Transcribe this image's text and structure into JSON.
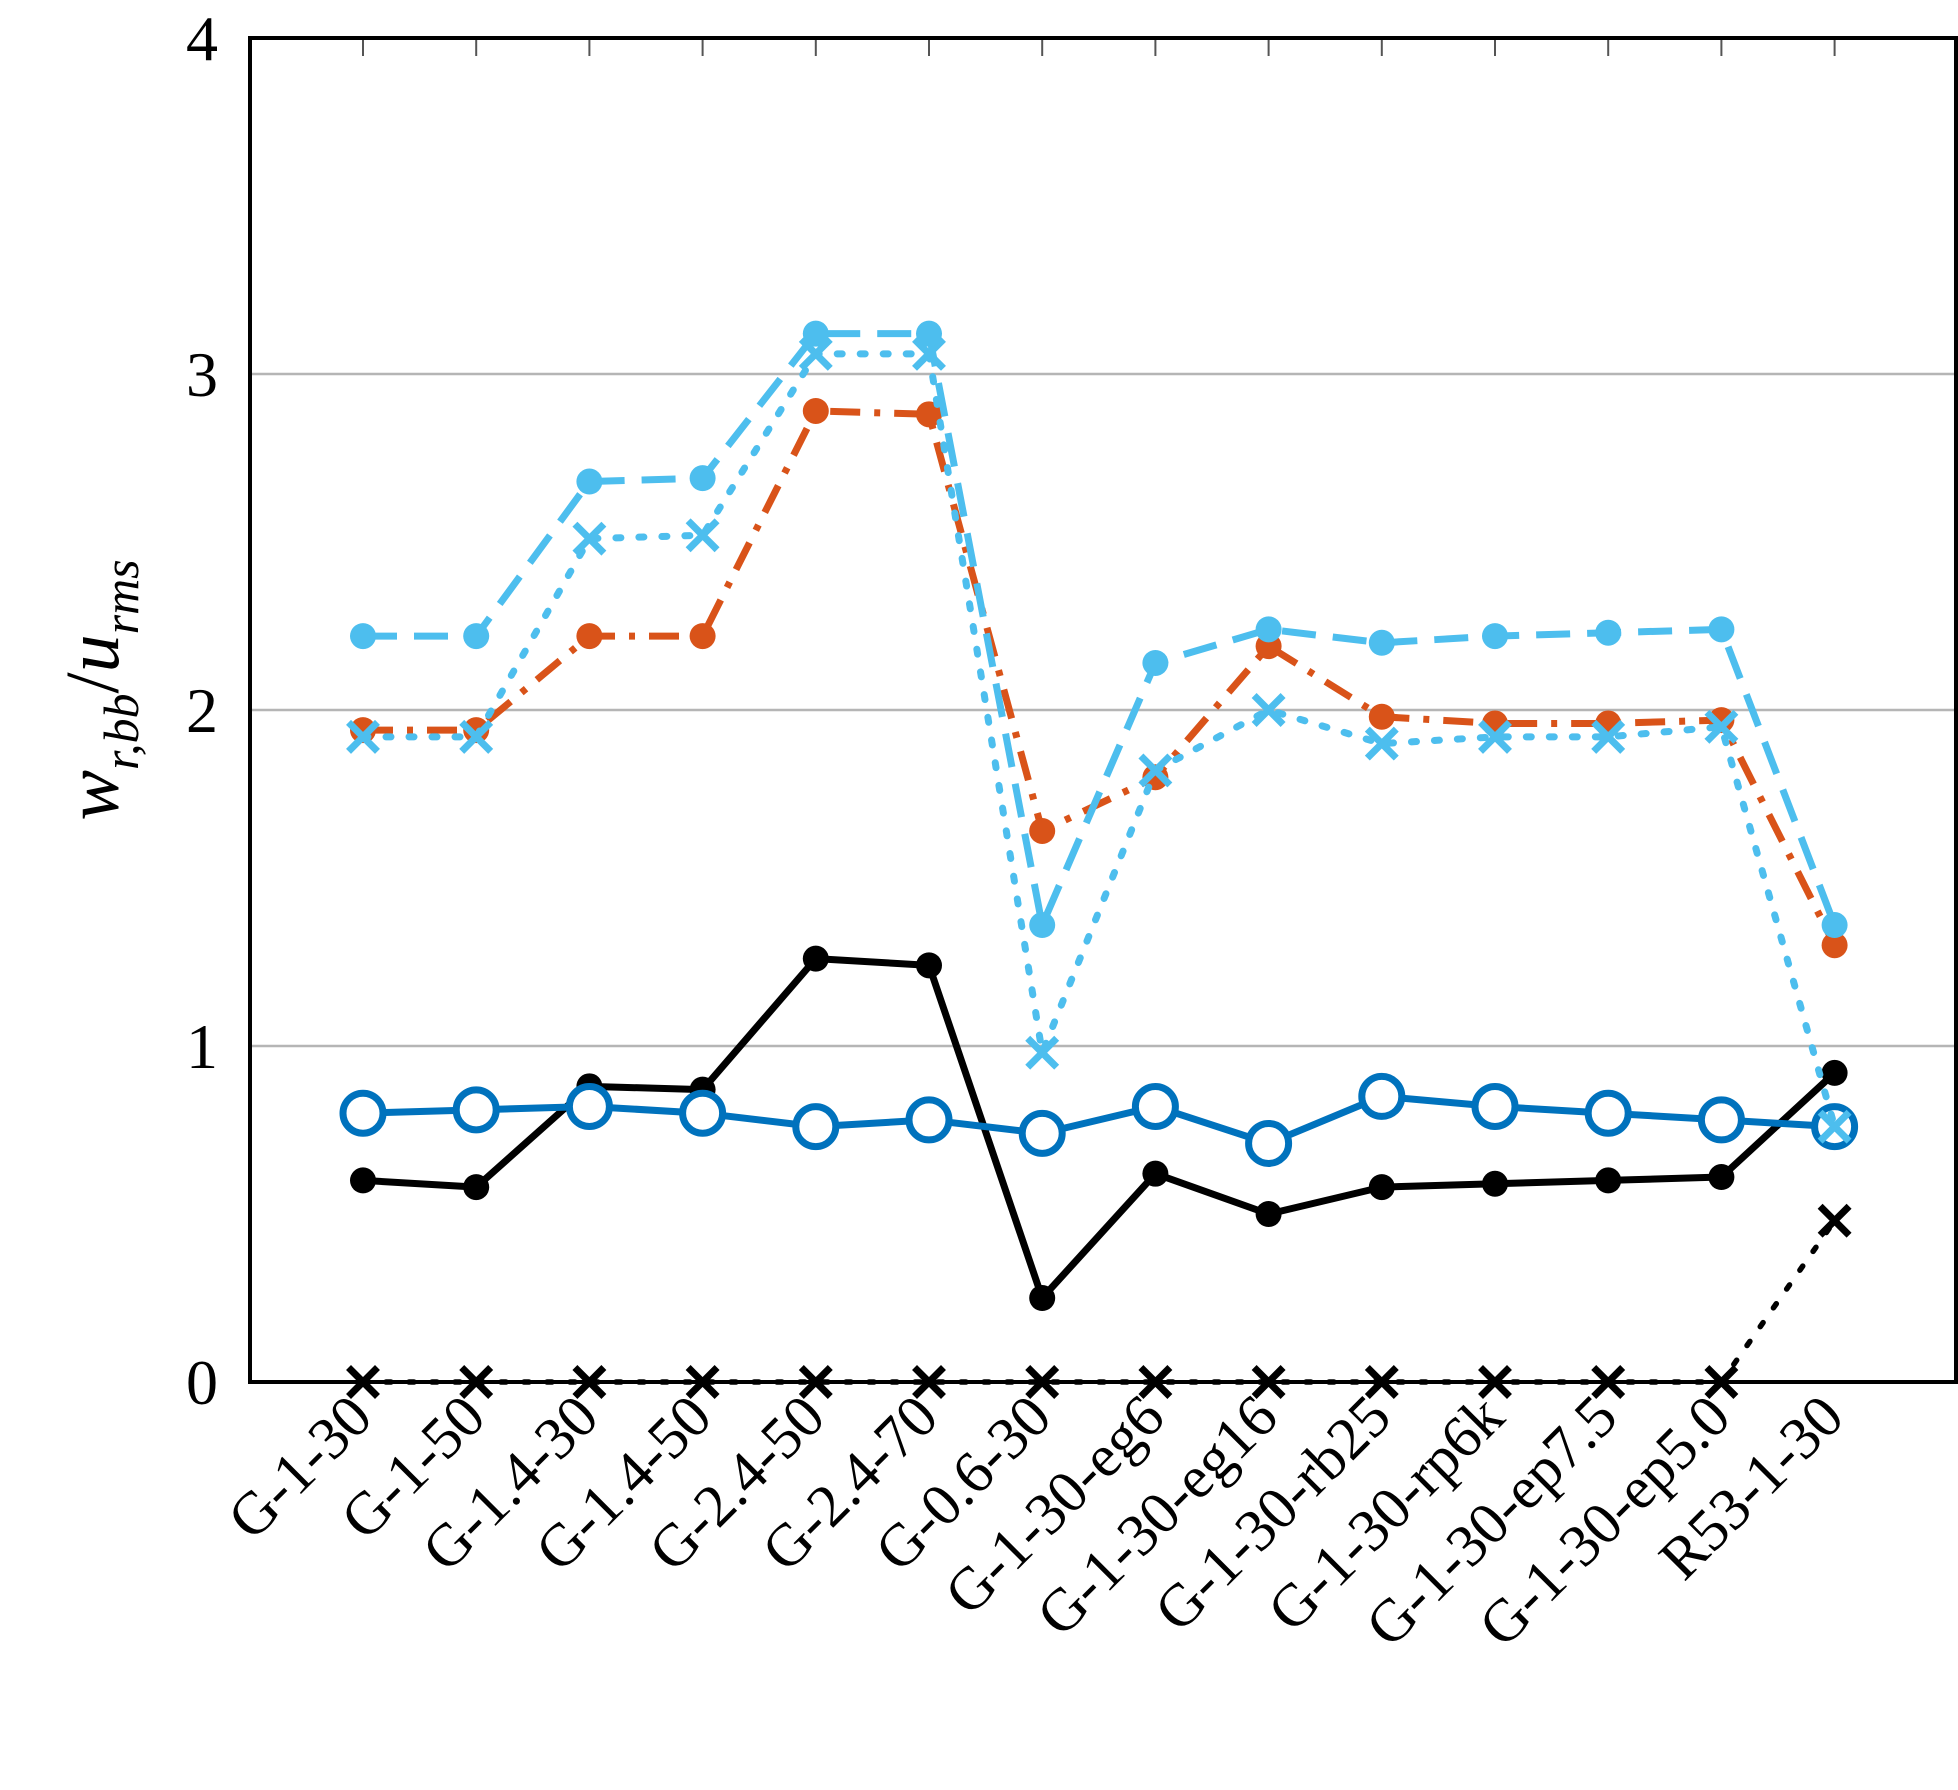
{
  "chart_data": {
    "type": "line",
    "ylabel_main": "w",
    "ylabel_sub1": "r,bb",
    "ylabel_slash": "/",
    "ylabel_main2": "u",
    "ylabel_sub2": "rms",
    "ylim": [
      0,
      4
    ],
    "yticks": [
      "0",
      "1",
      "2",
      "3",
      "4"
    ],
    "grid": "horizontal",
    "categories": [
      "G-1-30",
      "G-1-50",
      "G-1.4-30",
      "G-1.4-50",
      "G-2.4-50",
      "G-2.4-70",
      "G-0.6-30",
      "G-1-30-eg6",
      "G-1-30-eg16",
      "G-1-30-rb25",
      "G-1-30-rp6k",
      "G-1-30-ep7.5",
      "G-1-30-ep5.0",
      "R53-1-30"
    ],
    "series": [
      {
        "color": "#4dbeee",
        "dash": "dashed",
        "marker": "dot",
        "values": [
          2.22,
          2.22,
          2.68,
          2.69,
          3.12,
          3.12,
          1.36,
          2.14,
          2.24,
          2.2,
          2.22,
          2.23,
          2.24,
          1.36
        ]
      },
      {
        "color": "#4dbeee",
        "dash": "dotted",
        "marker": "x",
        "values": [
          1.92,
          1.92,
          2.51,
          2.52,
          3.06,
          3.06,
          0.98,
          1.82,
          2.0,
          1.9,
          1.92,
          1.92,
          1.95,
          0.76
        ]
      },
      {
        "color": "#d95319",
        "dash": "dashdot",
        "marker": "dot",
        "values": [
          1.94,
          1.94,
          2.22,
          2.22,
          2.89,
          2.88,
          1.64,
          1.8,
          2.19,
          1.98,
          1.96,
          1.96,
          1.97,
          1.3
        ]
      },
      {
        "color": "#000000",
        "dash": "solid",
        "marker": "dot",
        "values": [
          0.6,
          0.58,
          0.88,
          0.87,
          1.26,
          1.24,
          0.25,
          0.62,
          0.5,
          0.58,
          0.59,
          0.6,
          0.61,
          0.92
        ]
      },
      {
        "color": "#0072bd",
        "dash": "solid",
        "marker": "circle",
        "values": [
          0.8,
          0.81,
          0.82,
          0.8,
          0.76,
          0.78,
          0.74,
          0.82,
          0.71,
          0.85,
          0.82,
          0.8,
          0.78,
          0.76
        ]
      },
      {
        "color": "#000000",
        "dash": "dotted",
        "marker": "x",
        "values": [
          0.0,
          0.0,
          0.0,
          0.0,
          0.0,
          0.0,
          0.0,
          0.0,
          0.0,
          0.0,
          0.0,
          0.0,
          0.0,
          0.48
        ]
      }
    ]
  }
}
